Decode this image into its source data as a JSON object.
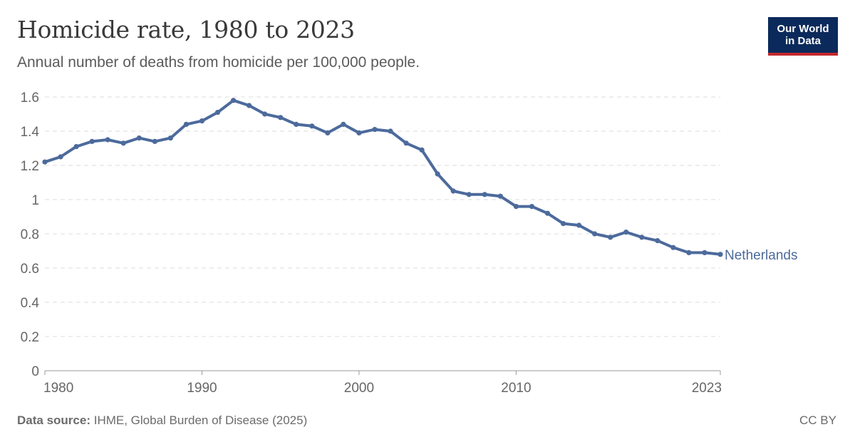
{
  "header": {
    "title": "Homicide rate, 1980 to 2023",
    "subtitle": "Annual number of deaths from homicide per 100,000 people."
  },
  "logo": {
    "line1": "Our World",
    "line2": "in Data"
  },
  "footer": {
    "source_label": "Data source:",
    "source_text": "IHME, Global Burden of Disease (2025)",
    "license": "CC BY"
  },
  "colors": {
    "series": "#4c6a9c",
    "grid": "#dddddd",
    "axis": "#999999",
    "logo_bg": "#0b2a5b",
    "logo_accent": "#c4282d"
  },
  "chart_data": {
    "type": "line",
    "title": "Homicide rate, 1980 to 2023",
    "subtitle": "Annual number of deaths from homicide per 100,000 people.",
    "xlabel": "",
    "ylabel": "",
    "xlim": [
      1980,
      2023
    ],
    "ylim": [
      0,
      1.6
    ],
    "y_ticks": [
      "0",
      "0.2",
      "0.4",
      "0.6",
      "0.8",
      "1",
      "1.2",
      "1.4",
      "1.6"
    ],
    "y_tick_values": [
      0,
      0.2,
      0.4,
      0.6,
      0.8,
      1,
      1.2,
      1.4,
      1.6
    ],
    "x_ticks": [
      "1980",
      "1990",
      "2000",
      "2010",
      "2023"
    ],
    "x_tick_values": [
      1980,
      1990,
      2000,
      2010,
      2023
    ],
    "grid": "horizontal dashed",
    "legend": "end-of-line label",
    "series": [
      {
        "name": "Netherlands",
        "x": [
          1980,
          1981,
          1982,
          1983,
          1984,
          1985,
          1986,
          1987,
          1988,
          1989,
          1990,
          1991,
          1992,
          1993,
          1994,
          1995,
          1996,
          1997,
          1998,
          1999,
          2000,
          2001,
          2002,
          2003,
          2004,
          2005,
          2006,
          2007,
          2008,
          2009,
          2010,
          2011,
          2012,
          2013,
          2014,
          2015,
          2016,
          2017,
          2018,
          2019,
          2020,
          2021,
          2022,
          2023
        ],
        "values": [
          1.22,
          1.25,
          1.31,
          1.34,
          1.35,
          1.33,
          1.36,
          1.34,
          1.36,
          1.44,
          1.46,
          1.51,
          1.58,
          1.55,
          1.5,
          1.48,
          1.44,
          1.43,
          1.39,
          1.44,
          1.39,
          1.41,
          1.4,
          1.33,
          1.29,
          1.15,
          1.05,
          1.03,
          1.03,
          1.02,
          0.96,
          0.96,
          0.92,
          0.86,
          0.85,
          0.8,
          0.78,
          0.81,
          0.78,
          0.76,
          0.72,
          0.69,
          0.69,
          0.68
        ]
      }
    ]
  }
}
